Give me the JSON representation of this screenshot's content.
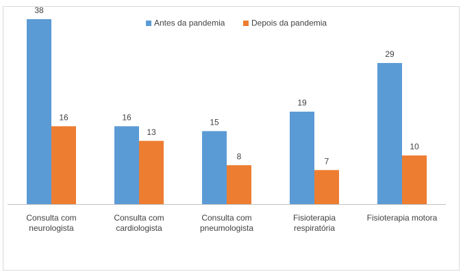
{
  "chart_data": {
    "type": "bar",
    "categories": [
      "Consulta com neurologista",
      "Consulta com cardiologista",
      "Consulta com pneumologista",
      "Fisioterapia respiratória",
      "Fisioterapia motora"
    ],
    "series": [
      {
        "name": "Antes da pandemia",
        "color": "#5b9bd5",
        "values": [
          38,
          16,
          15,
          19,
          29
        ]
      },
      {
        "name": "Depois da pandemia",
        "color": "#ed7d31",
        "values": [
          16,
          13,
          8,
          7,
          10
        ]
      }
    ],
    "legend": "top"
  }
}
